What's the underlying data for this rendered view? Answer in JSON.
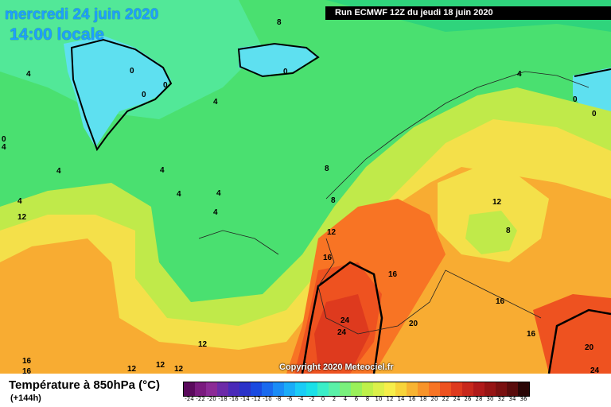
{
  "header": {
    "date": "mercredi 24 juin 2020",
    "time": "14:00 locale",
    "run": "Run ECMWF 12Z du jeudi 18 juin 2020"
  },
  "map": {
    "contour_labels": [
      "0",
      "0",
      "0",
      "0",
      "0",
      "0",
      "0",
      "4",
      "4",
      "4",
      "4",
      "4",
      "4",
      "4",
      "4",
      "4",
      "4",
      "8",
      "8",
      "8",
      "8",
      "12",
      "12",
      "12",
      "12",
      "12",
      "12",
      "12",
      "16",
      "16",
      "16",
      "16",
      "16",
      "16",
      "20",
      "20",
      "24",
      "24",
      "24"
    ],
    "copyright": "Copyright 2020 Meteociel.fr"
  },
  "legend": {
    "title": "Température à 850hPa (°C)",
    "subtitle": "(+144h)",
    "ticks": [
      "-24",
      "-22",
      "-20",
      "-18",
      "-16",
      "-14",
      "-12",
      "-10",
      "-8",
      "-6",
      "-4",
      "-2",
      "0",
      "2",
      "4",
      "6",
      "8",
      "10",
      "12",
      "14",
      "16",
      "18",
      "20",
      "22",
      "24",
      "26",
      "28",
      "30",
      "32",
      "34",
      "36"
    ],
    "colors": [
      "#5a0a5c",
      "#7a1a7e",
      "#8c2a96",
      "#6c2aa8",
      "#4a2ab8",
      "#2a32c8",
      "#1a4ae0",
      "#1a6aee",
      "#1a8cf6",
      "#1aacf8",
      "#1accf6",
      "#1ae0e8",
      "#3aeec8",
      "#5af0a8",
      "#7af07c",
      "#9af05a",
      "#bef04a",
      "#dcf04a",
      "#f6ee4a",
      "#f8d43a",
      "#f8b432",
      "#f8942a",
      "#f87424",
      "#ee5220",
      "#de3a1e",
      "#c8281c",
      "#b01a1a",
      "#961414",
      "#7a1010",
      "#5a0c0c",
      "#2a0606"
    ]
  }
}
